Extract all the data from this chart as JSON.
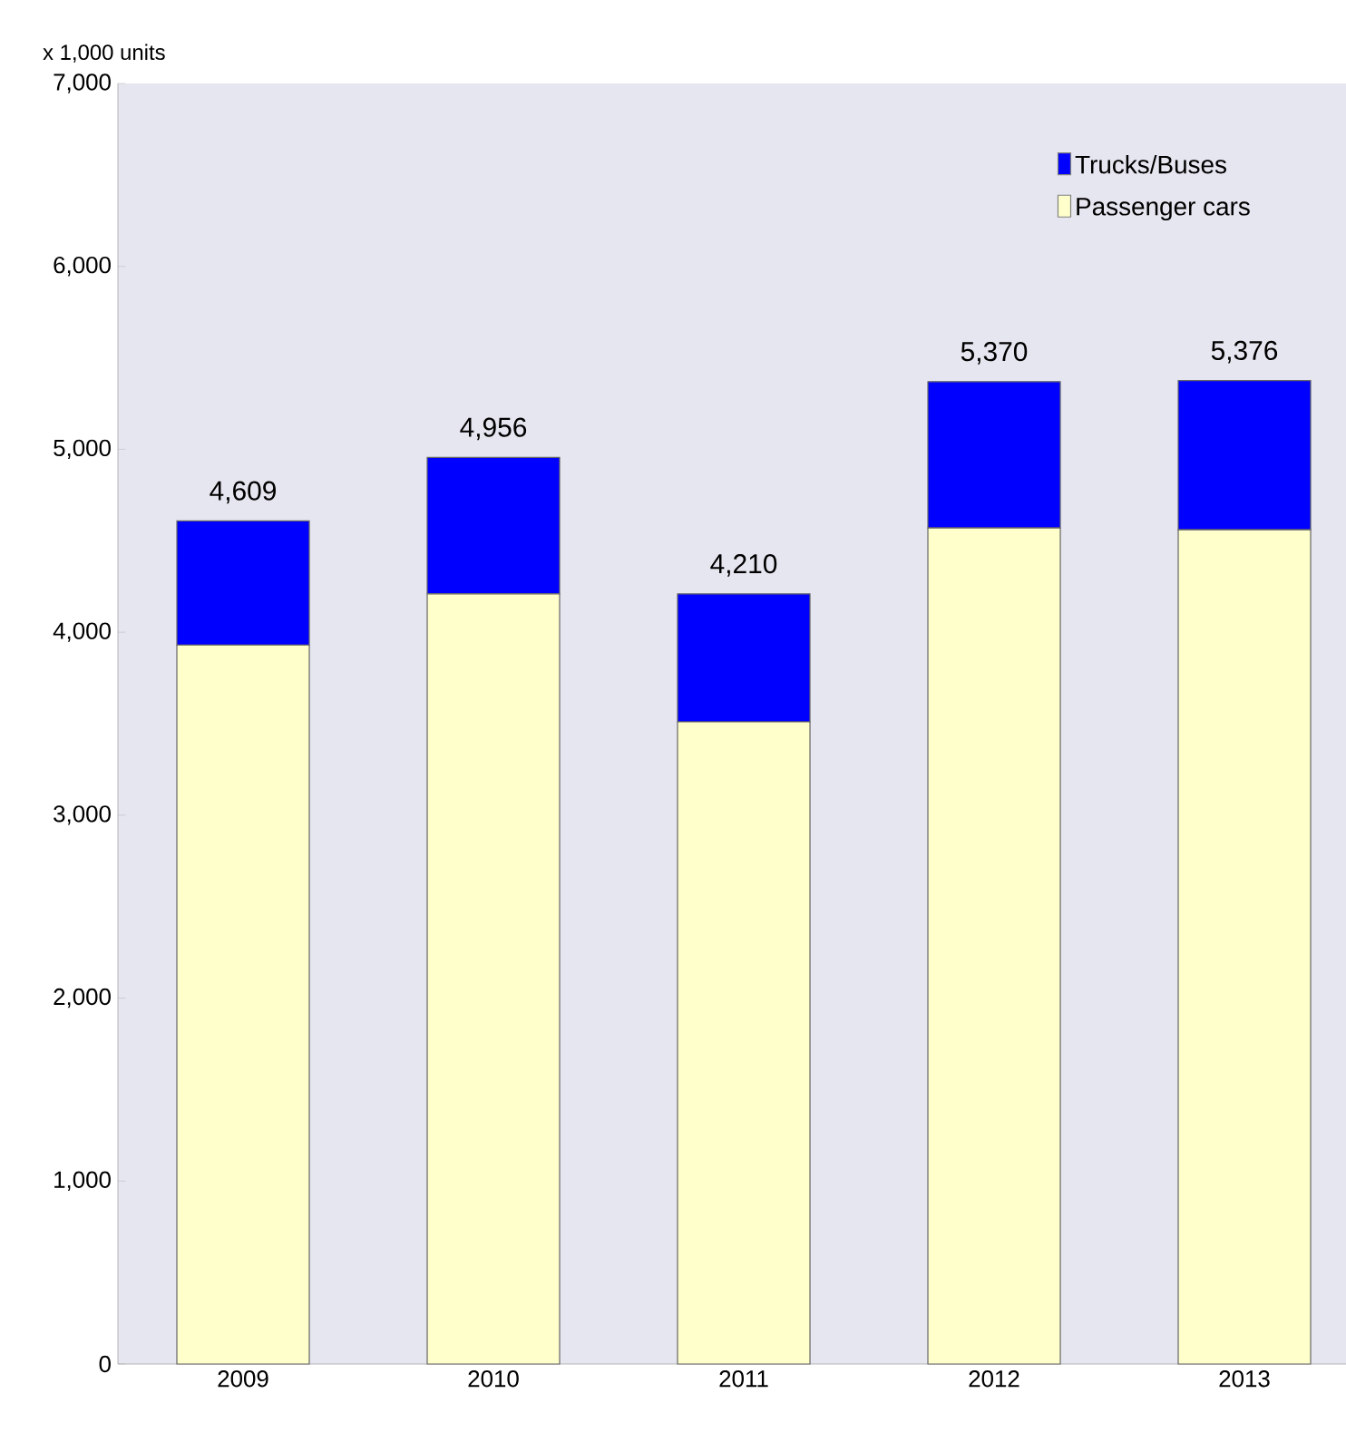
{
  "chart_data": {
    "type": "bar",
    "ylabel": "x 1,000 units",
    "categories": [
      "2009",
      "2010",
      "2011",
      "2012",
      "2013"
    ],
    "stacked": true,
    "series": [
      {
        "name": "Passenger cars",
        "color": "#ffffcc",
        "values": [
          3930,
          4210,
          3510,
          4570,
          4560
        ]
      },
      {
        "name": "Trucks/Buses",
        "color": "#0000ff",
        "values": [
          679,
          746,
          700,
          800,
          816
        ]
      }
    ],
    "totals": [
      "4,609",
      "4,956",
      "4,210",
      "5,370",
      "5,376"
    ],
    "ylim": [
      0,
      7000
    ],
    "yticks": [
      {
        "value": 0,
        "label": "0"
      },
      {
        "value": 1000,
        "label": "1,000"
      },
      {
        "value": 2000,
        "label": "2,000"
      },
      {
        "value": 3000,
        "label": "3,000"
      },
      {
        "value": 4000,
        "label": "4,000"
      },
      {
        "value": 5000,
        "label": "5,000"
      },
      {
        "value": 6000,
        "label": "6,000"
      },
      {
        "value": 7000,
        "label": "7,000"
      }
    ],
    "grid": false,
    "legend": "top right"
  }
}
